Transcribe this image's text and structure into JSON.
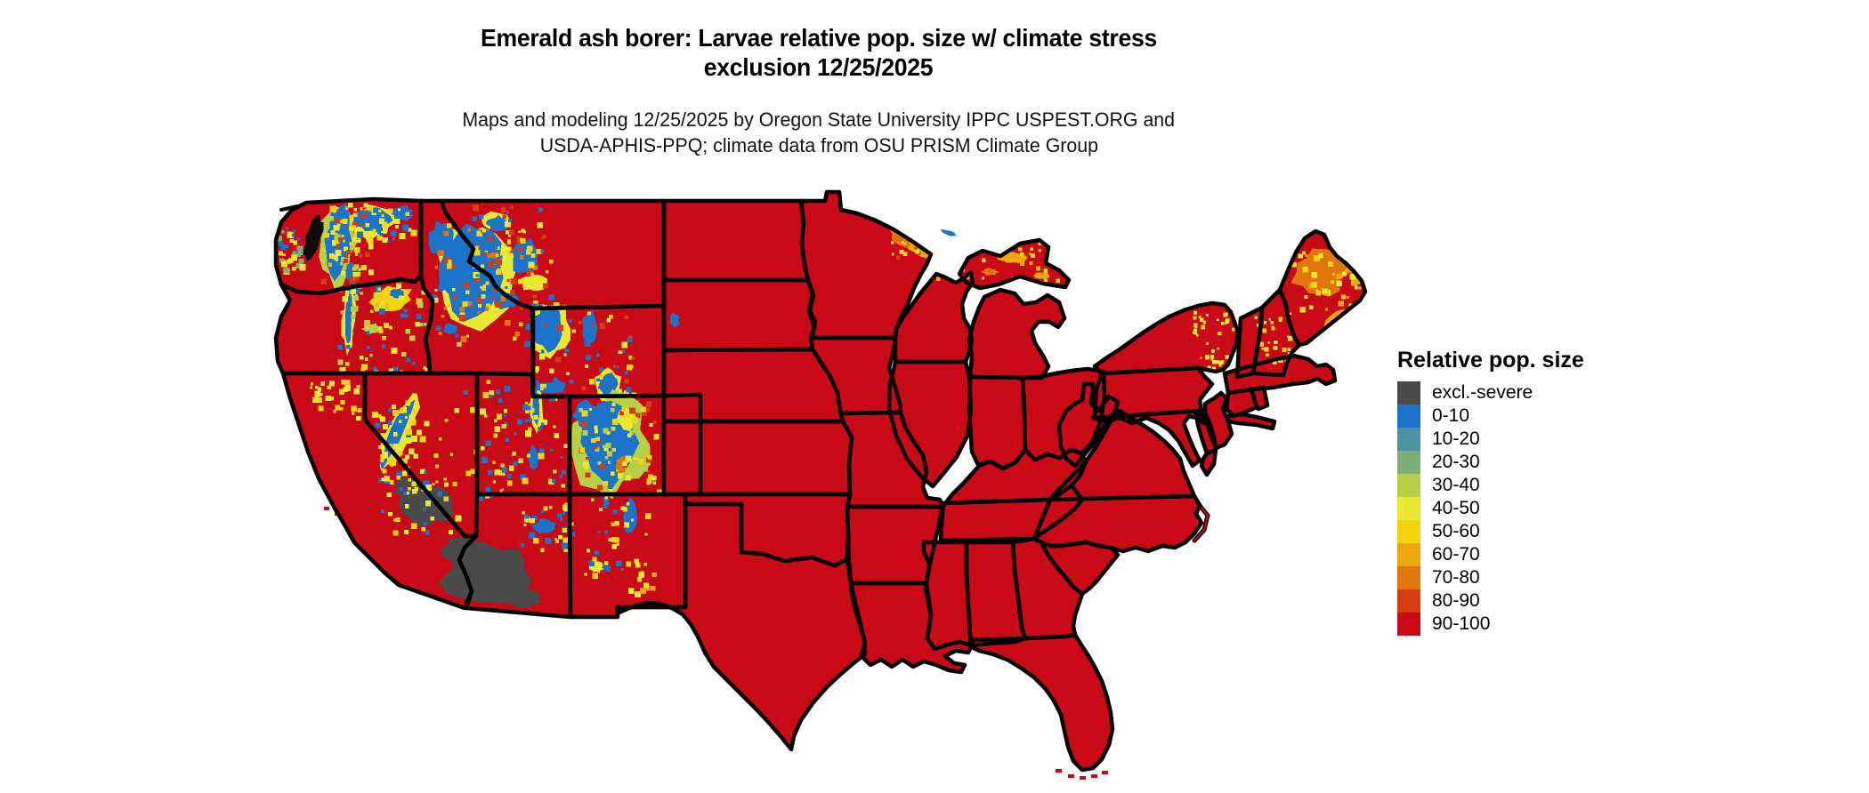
{
  "figure": {
    "title_line1": "Emerald ash borer: Larvae relative pop. size w/ climate stress",
    "title_line2": "exclusion 12/25/2025",
    "subtitle_line1": "Maps and modeling 12/25/2025 by Oregon State University IPPC USPEST.ORG and",
    "subtitle_line2": "USDA-APHIS-PPQ; climate data from OSU PRISM Climate Group"
  },
  "legend": {
    "title": "Relative pop. size",
    "items": [
      {
        "label": "excl.-severe",
        "color": "#4a4a4a"
      },
      {
        "label": "0-10",
        "color": "#1b73ca"
      },
      {
        "label": "10-20",
        "color": "#4d93a1"
      },
      {
        "label": "20-30",
        "color": "#7ead77"
      },
      {
        "label": "30-40",
        "color": "#b7cf45"
      },
      {
        "label": "40-50",
        "color": "#ebe832"
      },
      {
        "label": "50-60",
        "color": "#f4d411"
      },
      {
        "label": "60-70",
        "color": "#eca80d"
      },
      {
        "label": "70-80",
        "color": "#e1770c"
      },
      {
        "label": "80-90",
        "color": "#d43d12"
      },
      {
        "label": "90-100",
        "color": "#c90a16"
      }
    ]
  },
  "map": {
    "region": "Contiguous United States",
    "dominant_class": "90-100",
    "border_color": "#000000",
    "background_color": "#ffffff",
    "notes": [
      "Nearly all of the contiguous US is shaded 90-100 (red)",
      "Mountain West (Cascades, Sierra Nevada, Idaho/Montana Rockies, Wyoming, Utah, Colorado Rockies) shows patches of 0-60 values (blues, greens, yellows)",
      "Southwestern Arizona and southeastern California deserts are shaded excl.-severe (dark gray)",
      "Northern Maine, the Lake Superior shore of Minnesota and upper Michigan show 50-80 values (orange)"
    ]
  }
}
